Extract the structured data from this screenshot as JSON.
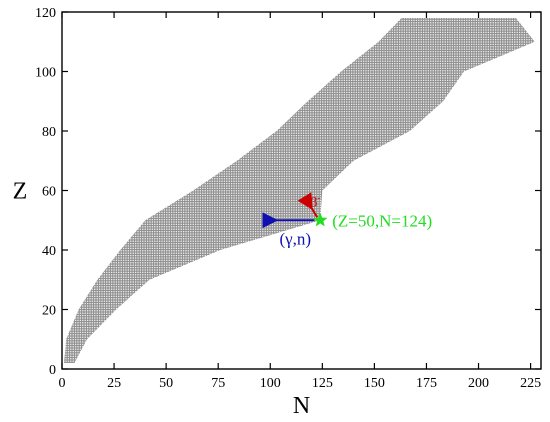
{
  "chart_data": {
    "type": "scatter",
    "xlabel": "N",
    "ylabel": "Z",
    "xlim": [
      0,
      230
    ],
    "ylim": [
      0,
      120
    ],
    "xticks": [
      0,
      25,
      50,
      75,
      100,
      125,
      150,
      175,
      200,
      225
    ],
    "yticks": [
      0,
      20,
      40,
      60,
      80,
      100,
      120
    ],
    "series": [
      {
        "marker": "small open square",
        "color": "#777777",
        "bands": [
          {
            "z": 2,
            "n_min": 1,
            "n_max": 6
          },
          {
            "z": 10,
            "n_min": 2,
            "n_max": 12
          },
          {
            "z": 20,
            "n_min": 8,
            "n_max": 26
          },
          {
            "z": 30,
            "n_min": 17,
            "n_max": 42
          },
          {
            "z": 40,
            "n_min": 28,
            "n_max": 76
          },
          {
            "z": 50,
            "n_min": 40,
            "n_max": 124
          },
          {
            "z": 60,
            "n_min": 63,
            "n_max": 125
          },
          {
            "z": 70,
            "n_min": 84,
            "n_max": 140
          },
          {
            "z": 80,
            "n_min": 103,
            "n_max": 167
          },
          {
            "z": 90,
            "n_min": 118,
            "n_max": 183
          },
          {
            "z": 100,
            "n_min": 134,
            "n_max": 193
          },
          {
            "z": 110,
            "n_min": 152,
            "n_max": 227
          },
          {
            "z": 118,
            "n_min": 163,
            "n_max": 218
          }
        ]
      }
    ],
    "highlight_point": {
      "x": 124,
      "y": 50,
      "marker": "star",
      "color": "#22dd22"
    },
    "annotations": {
      "point_label": "(Z=50,N=124)",
      "capture_label": "(γ,n)",
      "decay_label": "β",
      "decay_superscript": "-"
    },
    "arrows": [
      {
        "from": [
          124,
          50
        ],
        "to": [
          100,
          50
        ],
        "color": "#1010b0"
      },
      {
        "from": [
          124,
          50
        ],
        "to": [
          118,
          55
        ],
        "color": "#cc0000"
      }
    ],
    "grid": false,
    "legend": "none"
  }
}
